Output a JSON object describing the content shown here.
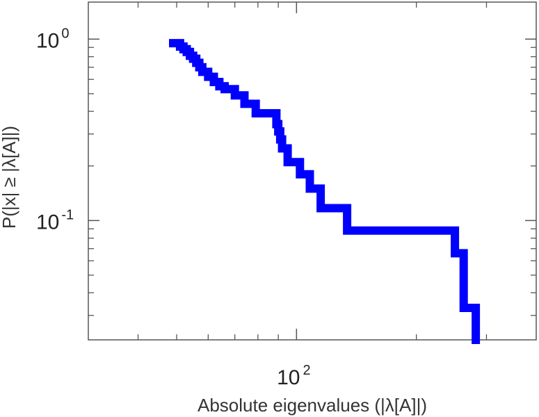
{
  "chart_data": {
    "type": "line",
    "step": true,
    "xscale": "log",
    "yscale": "log",
    "xlabel": "Absolute eigenvalues (|λ[A]|)",
    "ylabel": "P(|x| ≥ |λ[A]|)",
    "xlim": [
      30,
      400
    ],
    "ylim": [
      0.022,
      1.6
    ],
    "xticks": [
      {
        "value": 100,
        "base": "10",
        "exp": "2"
      }
    ],
    "yticks": [
      {
        "value": 1,
        "base": "10",
        "exp": "0"
      },
      {
        "value": 0.1,
        "base": "10",
        "exp": "-1"
      }
    ],
    "grid": false,
    "series": [
      {
        "color": "#0000ff",
        "x": [
          49,
          51,
          52,
          53,
          54,
          55,
          56,
          57,
          58,
          60,
          62,
          64,
          66,
          70,
          74,
          79,
          85,
          89,
          90,
          91,
          92,
          95,
          102,
          108,
          115,
          134,
          155,
          250,
          263,
          282,
          282
        ],
        "y": [
          0.95,
          0.91,
          0.88,
          0.85,
          0.81,
          0.78,
          0.74,
          0.7,
          0.66,
          0.62,
          0.58,
          0.55,
          0.53,
          0.49,
          0.44,
          0.39,
          0.39,
          0.34,
          0.31,
          0.28,
          0.25,
          0.21,
          0.18,
          0.15,
          0.117,
          0.088,
          0.088,
          0.066,
          0.033,
          0.023,
          0.022
        ]
      }
    ]
  }
}
